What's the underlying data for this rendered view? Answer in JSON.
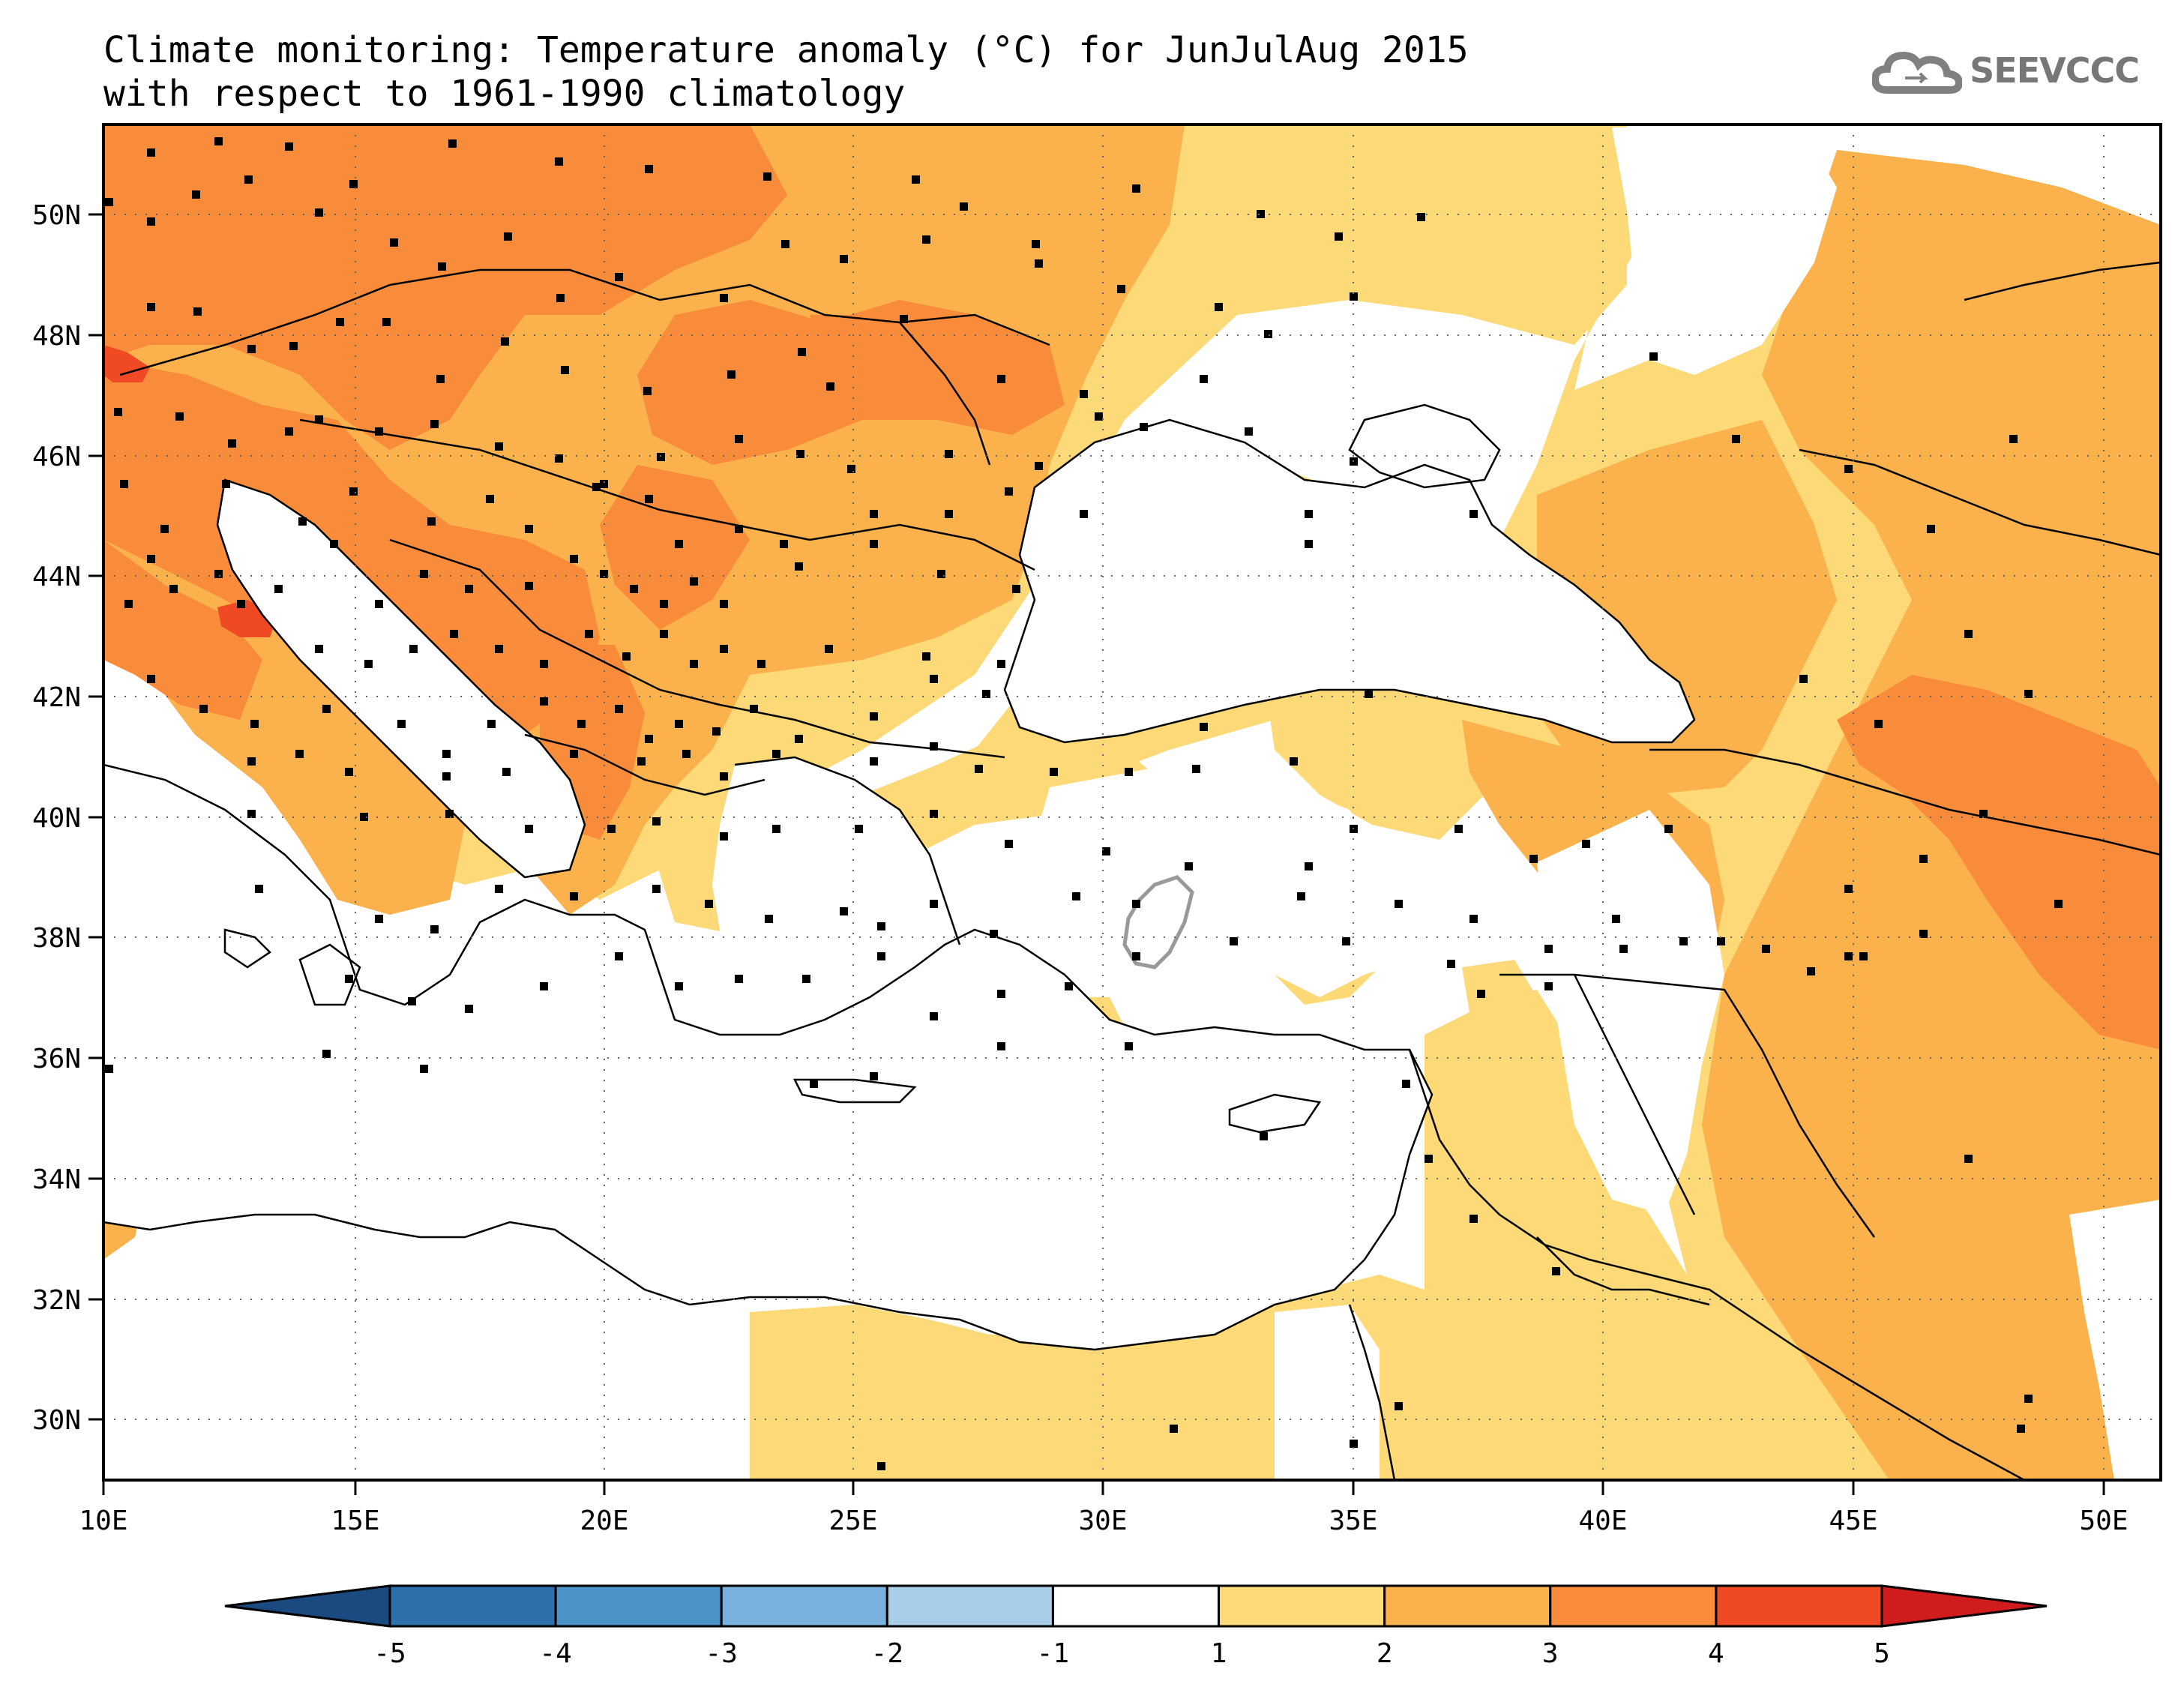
{
  "title": {
    "line1": "Climate monitoring: Temperature anomaly (°C) for JunJulAug 2015",
    "line2": "with respect to 1961-1990 climatology"
  },
  "logo": {
    "text": "SEEVCCC",
    "icon": "cloud-icon"
  },
  "map": {
    "lon_range": [
      10,
      51
    ],
    "lat_range": [
      29,
      51.5
    ],
    "x_ticks": [
      "10E",
      "15E",
      "20E",
      "25E",
      "30E",
      "35E",
      "40E",
      "45E",
      "50E"
    ],
    "y_ticks": [
      "30N",
      "32N",
      "34N",
      "36N",
      "38N",
      "40N",
      "42N",
      "44N",
      "46N",
      "48N",
      "50N"
    ],
    "grid": "dotted"
  },
  "colorbar": {
    "labels": [
      "-5",
      "-4",
      "-3",
      "-2",
      "-1",
      "1",
      "2",
      "3",
      "4",
      "5"
    ],
    "colors": [
      "#1a4a80",
      "#2d6fab",
      "#4a92c8",
      "#78b2dc",
      "#a8cde6",
      "#ffffff",
      "#fdd978",
      "#fbb14c",
      "#f98c3a",
      "#f04a24",
      "#d01c1c"
    ]
  },
  "legend_colors": {
    "c1to2": "#fdd978",
    "c2to3": "#fbb14c",
    "c3to4": "#f98c3a",
    "c4to5": "#f04a24",
    "sea": "#ffffff"
  }
}
